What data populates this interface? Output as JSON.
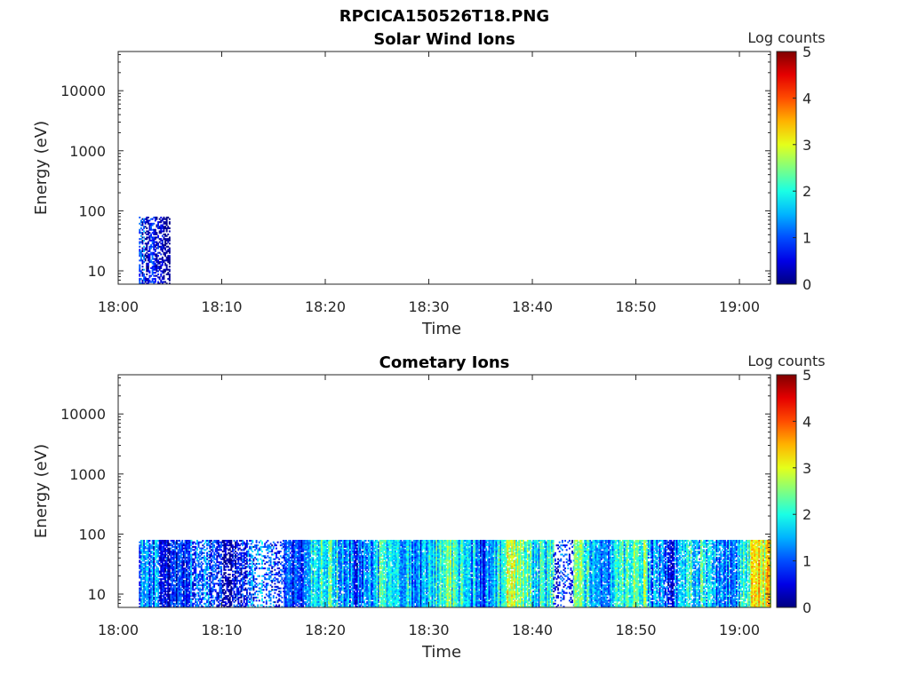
{
  "figure_title": "RPCICA150526T18.PNG",
  "chart_data": [
    {
      "type": "heatmap",
      "title": "Solar Wind Ions",
      "xlabel": "Time",
      "ylabel": "Energy (eV)",
      "yscale": "log",
      "x_range": [
        "18:00",
        "19:03"
      ],
      "ylim": [
        6,
        45000
      ],
      "x_ticks": [
        "18:00",
        "18:10",
        "18:20",
        "18:30",
        "18:40",
        "18:50",
        "19:00"
      ],
      "y_ticks": [
        "10",
        "100",
        "1000",
        "10000"
      ],
      "energy_range_with_data": [
        6,
        80
      ],
      "colorbar": {
        "label": "Log counts",
        "range": [
          0,
          5
        ],
        "ticks": [
          "0",
          "1",
          "2",
          "3",
          "4",
          "5"
        ],
        "colormap": "jet"
      },
      "activity": [
        {
          "start": "18:02",
          "end": "18:05",
          "level": 0.2,
          "density": 0.55
        }
      ]
    },
    {
      "type": "heatmap",
      "title": "Cometary Ions",
      "xlabel": "Time",
      "ylabel": "Energy (eV)",
      "yscale": "log",
      "x_range": [
        "18:00",
        "19:03"
      ],
      "ylim": [
        6,
        45000
      ],
      "x_ticks": [
        "18:00",
        "18:10",
        "18:20",
        "18:30",
        "18:40",
        "18:50",
        "19:00"
      ],
      "y_ticks": [
        "10",
        "100",
        "1000",
        "10000"
      ],
      "energy_range_with_data": [
        6,
        80
      ],
      "colorbar": {
        "label": "Log counts",
        "range": [
          0,
          5
        ],
        "ticks": [
          "0",
          "1",
          "2",
          "3",
          "4",
          "5"
        ],
        "colormap": "jet"
      },
      "activity": [
        {
          "start": "18:02",
          "end": "18:07",
          "level": 1.0,
          "density": 0.85
        },
        {
          "start": "18:07",
          "end": "18:13",
          "level": 0.8,
          "density": 0.6
        },
        {
          "start": "18:13",
          "end": "18:16",
          "level": 0.7,
          "density": 0.35
        },
        {
          "start": "18:16",
          "end": "18:26",
          "level": 1.6,
          "density": 0.9
        },
        {
          "start": "18:26",
          "end": "18:37",
          "level": 1.7,
          "density": 0.95
        },
        {
          "start": "18:37",
          "end": "18:42",
          "level": 2.2,
          "density": 0.9
        },
        {
          "start": "18:42",
          "end": "18:44",
          "level": 0.6,
          "density": 0.3
        },
        {
          "start": "18:44",
          "end": "18:51",
          "level": 1.9,
          "density": 0.9
        },
        {
          "start": "18:51",
          "end": "18:58",
          "level": 1.4,
          "density": 0.8
        },
        {
          "start": "18:58",
          "end": "19:01",
          "level": 1.8,
          "density": 0.85
        },
        {
          "start": "19:01",
          "end": "19:03",
          "level": 2.6,
          "density": 0.95
        }
      ]
    }
  ]
}
